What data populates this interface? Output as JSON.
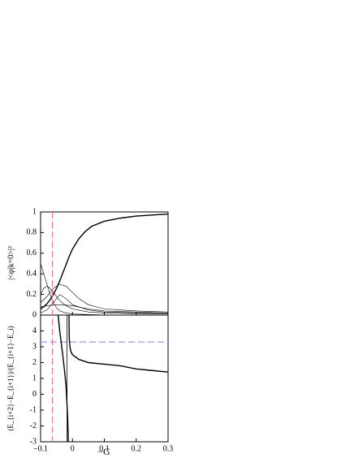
{
  "chart_data": [
    {
      "type": "line",
      "ylabel": "|<φ|k=0>|²",
      "xlim": [
        -0.1,
        0.3
      ],
      "ylim": [
        0,
        1
      ],
      "yticks": [
        0,
        0.2,
        0.4,
        0.6,
        0.8,
        1
      ],
      "vline": {
        "x": -0.063,
        "color": "#e07090"
      },
      "series": [
        {
          "color": "#000000",
          "line_width": 1.4,
          "x": [
            -0.1,
            -0.09,
            -0.08,
            -0.07,
            -0.06,
            -0.05,
            -0.04,
            -0.03,
            -0.02,
            -0.01,
            0,
            0.02,
            0.04,
            0.06,
            0.1,
            0.15,
            0.2,
            0.25,
            0.3
          ],
          "values": [
            0.06,
            0.08,
            0.11,
            0.15,
            0.2,
            0.26,
            0.33,
            0.41,
            0.49,
            0.57,
            0.64,
            0.74,
            0.81,
            0.86,
            0.91,
            0.94,
            0.96,
            0.97,
            0.98
          ]
        },
        {
          "color": "#000000",
          "line_width": 0.6,
          "x": [
            -0.1,
            -0.09,
            -0.08,
            -0.07,
            -0.06,
            -0.05,
            -0.04,
            -0.02,
            0,
            0.1,
            0.3
          ],
          "values": [
            0.5,
            0.4,
            0.3,
            0.2,
            0.12,
            0.07,
            0.04,
            0.02,
            0.01,
            0,
            0
          ]
        },
        {
          "color": "#000000",
          "line_width": 0.6,
          "x": [
            -0.1,
            -0.09,
            -0.08,
            -0.07,
            -0.06,
            -0.04,
            -0.02,
            0,
            0.05,
            0.1,
            0.3
          ],
          "values": [
            0.2,
            0.26,
            0.28,
            0.26,
            0.22,
            0.14,
            0.09,
            0.06,
            0.03,
            0.02,
            0.01
          ]
        },
        {
          "color": "#000000",
          "line_width": 0.6,
          "x": [
            -0.1,
            -0.08,
            -0.06,
            -0.04,
            -0.02,
            0,
            0.02,
            0.05,
            0.1,
            0.2,
            0.3
          ],
          "values": [
            0.12,
            0.18,
            0.26,
            0.3,
            0.28,
            0.22,
            0.16,
            0.1,
            0.06,
            0.04,
            0.03
          ]
        },
        {
          "color": "#000000",
          "line_width": 0.6,
          "x": [
            -0.1,
            -0.08,
            -0.06,
            -0.04,
            -0.02,
            0,
            0.05,
            0.1,
            0.2,
            0.3
          ],
          "values": [
            0.02,
            0.05,
            0.12,
            0.2,
            0.16,
            0.1,
            0.05,
            0.03,
            0.02,
            0.02
          ]
        },
        {
          "color": "#000000",
          "line_width": 0.6,
          "x": [
            -0.1,
            -0.06,
            -0.03,
            0,
            0.05,
            0.1,
            0.3
          ],
          "values": [
            0.08,
            0.1,
            0.1,
            0.09,
            0.06,
            0.04,
            0.02
          ]
        }
      ]
    },
    {
      "type": "line",
      "ylabel": "(E_{i+2}−E_{i+1})/(E_{i+1}−E_i)",
      "xlabel": "−G",
      "xlim": [
        -0.1,
        0.3
      ],
      "xticks": [
        {
          "value": -0.1,
          "label": "−0.1"
        },
        0,
        0.1,
        0.2,
        0.3
      ],
      "ylim": [
        -3,
        5
      ],
      "yticks": [
        -3,
        -2,
        -1,
        0,
        1,
        2,
        3,
        4
      ],
      "hline": {
        "y": 3.3,
        "color": "#8080e0"
      },
      "series": [
        {
          "color": "#000000",
          "line_width": 1.4,
          "x": [
            -0.045,
            -0.04,
            -0.035,
            -0.03,
            -0.025,
            -0.02,
            -0.015,
            -0.013,
            -0.0125,
            -0.011,
            -0.01,
            -0.008,
            -0.005,
            0,
            0.02,
            0.05,
            0.1,
            0.15,
            0.2,
            0.25,
            0.3
          ],
          "values": [
            5,
            4,
            3.2,
            2.4,
            1.5,
            0.5,
            -1.5,
            -3,
            null,
            5,
            3.5,
            3,
            2.7,
            2.5,
            2.2,
            2,
            1.9,
            1.8,
            1.6,
            1.5,
            1.4
          ]
        },
        {
          "color": "#000000",
          "line_width": 0.8,
          "x": [
            -0.017,
            -0.017
          ],
          "values": [
            5,
            -3
          ]
        }
      ]
    }
  ]
}
